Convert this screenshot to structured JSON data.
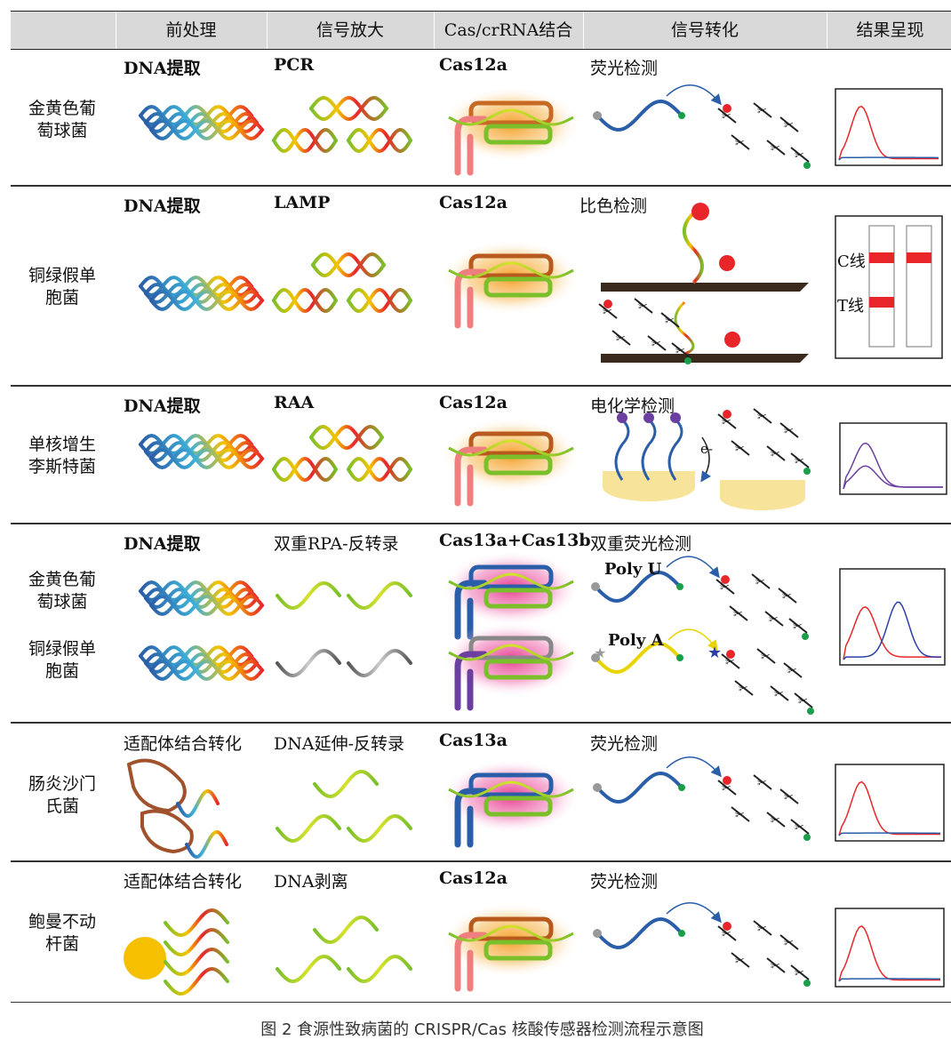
{
  "header": {
    "columns": [
      "前处理",
      "信号放大",
      "Cas/crRNA结合",
      "信号转化",
      "结果呈现"
    ]
  },
  "rows": [
    {
      "pathogen": [
        "金黄色葡",
        "萄球菌"
      ],
      "pre": "DNA提取",
      "amp": "PCR",
      "cas": "Cas12a",
      "signal": "荧光检测",
      "result": "fluorescence-single"
    },
    {
      "pathogen": [
        "铜绿假单",
        "胞菌"
      ],
      "pre": "DNA提取",
      "amp": "LAMP",
      "cas": "Cas12a",
      "signal": "比色检测",
      "result": "lateral-flow",
      "strip_labels": {
        "c": "C线",
        "t": "T线"
      }
    },
    {
      "pathogen": [
        "单核增生",
        "李斯特菌"
      ],
      "pre": "DNA提取",
      "amp": "RAA",
      "cas": "Cas12a",
      "signal": "电化学检测",
      "result": "electrochem",
      "electron_label": "e-"
    },
    {
      "pathogen": [
        "金黄色葡",
        "萄球菌"
      ],
      "pathogen2": [
        "铜绿假单",
        "胞菌"
      ],
      "pre": "DNA提取",
      "amp": "双重RPA-反转录",
      "cas": "Cas13a+Cas13b",
      "signal": "双重荧光检测",
      "result": "fluorescence-dual",
      "poly_u": "Poly U",
      "poly_a": "Poly A"
    },
    {
      "pathogen": [
        "肠炎沙门",
        "氏菌"
      ],
      "pre": "适配体结合转化",
      "amp": "DNA延伸-反转录",
      "cas": "Cas13a",
      "signal": "荧光检测",
      "result": "fluorescence-single"
    },
    {
      "pathogen": [
        "鲍曼不动",
        "杆菌"
      ],
      "pre": "适配体结合转化",
      "amp": "DNA剥离",
      "cas": "Cas12a",
      "signal": "荧光检测",
      "result": "fluorescence-single"
    }
  ],
  "caption": "图 2   食源性致病菌的 CRISPR/Cas 核酸传感器检测流程示意图",
  "colors": {
    "red": "#e8262a",
    "blue": "#2a5ea8",
    "purple": "#6b3fa0",
    "orange": "#f5a623",
    "pink": "#e6338a",
    "green": "#7bbf2a"
  }
}
